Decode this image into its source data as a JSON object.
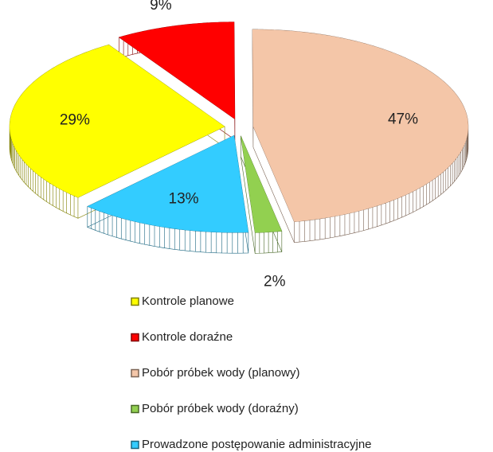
{
  "chart_data": {
    "type": "pie",
    "categories": [
      "Kontrole planowe",
      "Kontrole doraźne",
      "Pobór próbek wody (planowy)",
      "Pobór próbek wody (doraźny)",
      "Prowadzone postępowanie administracyjne"
    ],
    "values": [
      29,
      9,
      47,
      2,
      13
    ],
    "value_labels": [
      "29%",
      "9%",
      "47%",
      "2%",
      "13%"
    ],
    "colors": [
      "#ffff00",
      "#ff0000",
      "#f4c6a8",
      "#92d050",
      "#33ccff"
    ],
    "legend": "bottom"
  }
}
